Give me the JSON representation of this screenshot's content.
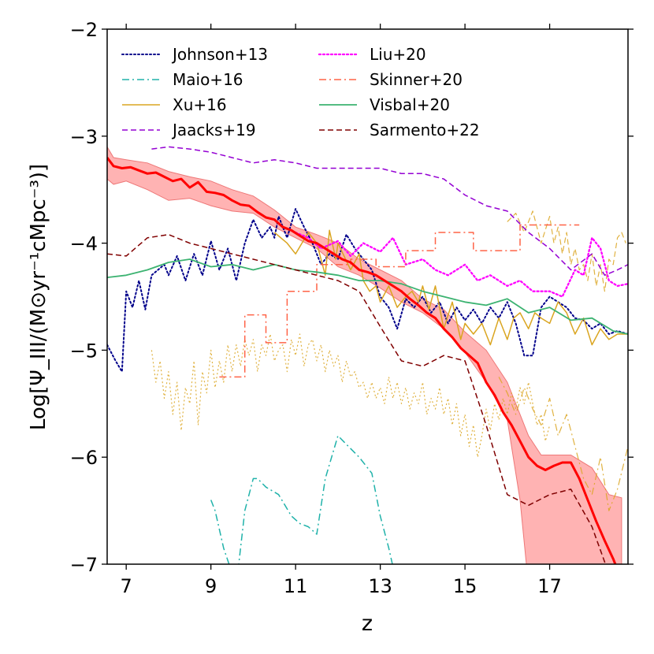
{
  "chart_data": {
    "type": "line",
    "title": "",
    "xlabel": "z",
    "ylabel": "Log[Ψ_III/(M⊙yr⁻¹cMpc⁻³)]",
    "xlim": [
      6.55,
      18.85
    ],
    "ylim": [
      -7,
      -2
    ],
    "xticks": [
      7,
      9,
      11,
      13,
      15,
      17
    ],
    "yticks": [
      -7,
      -6,
      -5,
      -4,
      -3,
      -2
    ],
    "legend_position": "top",
    "series": [
      {
        "name": "Johnson+13",
        "style": "dotted",
        "color": "#00008b",
        "width": 2,
        "x": [
          6.55,
          6.75,
          6.9,
          7.0,
          7.15,
          7.3,
          7.45,
          7.6,
          7.75,
          7.9,
          8.0,
          8.2,
          8.4,
          8.6,
          8.8,
          9.0,
          9.2,
          9.4,
          9.6,
          9.8,
          10.0,
          10.2,
          10.4,
          10.5,
          10.6,
          10.8,
          11.0,
          11.2,
          11.4,
          11.6,
          11.8,
          12.0,
          12.2,
          12.4,
          12.6,
          12.8,
          13.0,
          13.2,
          13.4,
          13.6,
          13.8,
          14.0,
          14.2,
          14.4,
          14.6,
          14.8,
          15.0,
          15.2,
          15.4,
          15.6,
          15.8,
          16.0,
          16.2,
          16.4,
          16.6,
          16.8,
          17.0,
          17.2,
          17.4,
          17.6,
          17.8,
          18.0,
          18.2,
          18.4,
          18.6,
          18.85
        ],
        "y": [
          -4.95,
          -5.1,
          -5.2,
          -4.45,
          -4.6,
          -4.35,
          -4.62,
          -4.3,
          -4.25,
          -4.2,
          -4.3,
          -4.12,
          -4.35,
          -4.1,
          -4.3,
          -3.98,
          -4.25,
          -4.05,
          -4.35,
          -4.0,
          -3.78,
          -3.95,
          -3.85,
          -3.95,
          -3.75,
          -3.95,
          -3.68,
          -3.85,
          -4.0,
          -4.2,
          -4.1,
          -4.15,
          -3.92,
          -4.05,
          -4.15,
          -4.25,
          -4.5,
          -4.6,
          -4.8,
          -4.52,
          -4.6,
          -4.5,
          -4.65,
          -4.55,
          -4.75,
          -4.6,
          -4.72,
          -4.62,
          -4.75,
          -4.6,
          -4.7,
          -4.55,
          -4.75,
          -5.05,
          -5.05,
          -4.6,
          -4.5,
          -4.55,
          -4.6,
          -4.7,
          -4.72,
          -4.8,
          -4.75,
          -4.85,
          -4.82,
          -4.85
        ]
      },
      {
        "name": "Maio+16",
        "style": "dashdot",
        "color": "#20b2aa",
        "width": 1.5,
        "x": [
          9.0,
          9.1,
          9.3,
          9.6,
          9.8,
          10.0,
          10.1,
          10.3,
          10.6,
          10.9,
          11.1,
          11.3,
          11.5,
          11.7,
          12.0,
          12.2,
          12.5,
          12.8,
          13.0,
          13.2,
          13.4
        ],
        "y": [
          -6.4,
          -6.5,
          -6.85,
          -7.2,
          -6.5,
          -6.2,
          -6.2,
          -6.28,
          -6.35,
          -6.55,
          -6.62,
          -6.65,
          -6.72,
          -6.2,
          -5.8,
          -5.88,
          -6.0,
          -6.15,
          -6.55,
          -6.85,
          -7.2
        ]
      },
      {
        "name": "Xu+16",
        "style": "solid",
        "color": "#daa520",
        "width": 1.5,
        "x": [
          10.5,
          10.8,
          11.0,
          11.3,
          11.5,
          11.7,
          11.8,
          11.95,
          12.0,
          12.3,
          12.5,
          12.6,
          12.75,
          12.9,
          13.0,
          13.2,
          13.4,
          13.6,
          13.75,
          13.9,
          14.0,
          14.15,
          14.3,
          14.5,
          14.7,
          14.9,
          15.0,
          15.2,
          15.4,
          15.6,
          15.8,
          16.0,
          16.15,
          16.3,
          16.5,
          16.65,
          16.8,
          17.0,
          17.2,
          17.4,
          17.6,
          17.8,
          18.0,
          18.2,
          18.4,
          18.6,
          18.85
        ],
        "y": [
          -3.9,
          -4.0,
          -4.1,
          -3.9,
          -4.0,
          -4.3,
          -3.88,
          -4.15,
          -4.0,
          -4.25,
          -4.1,
          -4.35,
          -4.45,
          -4.4,
          -4.55,
          -4.4,
          -4.6,
          -4.5,
          -4.45,
          -4.55,
          -4.4,
          -4.62,
          -4.4,
          -4.8,
          -4.55,
          -4.9,
          -4.75,
          -4.85,
          -4.75,
          -4.95,
          -4.7,
          -4.9,
          -4.7,
          -4.65,
          -4.8,
          -4.65,
          -4.7,
          -4.75,
          -4.55,
          -4.65,
          -4.85,
          -4.7,
          -4.95,
          -4.8,
          -4.9,
          -4.85,
          -4.85
        ]
      },
      {
        "name": "Jaacks+19",
        "style": "dashed",
        "color": "#9400d3",
        "width": 1.5,
        "x": [
          7.6,
          8.0,
          8.5,
          9.0,
          9.5,
          10.0,
          10.5,
          11.0,
          11.5,
          12.0,
          12.5,
          13.0,
          13.5,
          14.0,
          14.5,
          15.0,
          15.5,
          16.0,
          16.5,
          17.0,
          17.5,
          18.0,
          18.3,
          18.6,
          18.85
        ],
        "y": [
          -3.12,
          -3.1,
          -3.12,
          -3.15,
          -3.2,
          -3.25,
          -3.22,
          -3.25,
          -3.3,
          -3.3,
          -3.3,
          -3.3,
          -3.35,
          -3.35,
          -3.4,
          -3.55,
          -3.65,
          -3.7,
          -3.9,
          -4.05,
          -4.25,
          -4.1,
          -4.3,
          -4.25,
          -4.2
        ]
      },
      {
        "name": "Liu+20",
        "style": "dotted",
        "color": "#ff00ff",
        "width": 2.3,
        "x": [
          11.0,
          11.3,
          11.6,
          12.0,
          12.3,
          12.6,
          13.0,
          13.3,
          13.6,
          14.0,
          14.3,
          14.6,
          15.0,
          15.3,
          15.6,
          16.0,
          16.3,
          16.6,
          17.0,
          17.3,
          17.6,
          17.8,
          18.0,
          18.2,
          18.4,
          18.6,
          18.85
        ],
        "y": [
          -3.9,
          -3.95,
          -4.05,
          -3.98,
          -4.12,
          -4.0,
          -4.08,
          -3.95,
          -4.2,
          -4.15,
          -4.25,
          -4.3,
          -4.2,
          -4.35,
          -4.3,
          -4.4,
          -4.35,
          -4.45,
          -4.45,
          -4.5,
          -4.25,
          -4.3,
          -3.95,
          -4.05,
          -4.35,
          -4.4,
          -4.38
        ]
      },
      {
        "name": "Skinner+20",
        "style": "dashdot",
        "color": "#ff6347",
        "width": 1.5,
        "x": [
          9.2,
          9.2,
          9.8,
          9.8,
          10.3,
          10.3,
          10.8,
          10.8,
          11.5,
          11.5,
          12.3,
          12.3,
          12.9,
          12.9,
          13.6,
          13.6,
          14.3,
          14.3,
          15.2,
          15.2,
          16.3,
          16.3,
          17.7
        ],
        "y": [
          -5.25,
          -5.25,
          -5.25,
          -4.67,
          -4.67,
          -4.93,
          -4.93,
          -4.45,
          -4.45,
          -4.2,
          -4.2,
          -4.15,
          -4.15,
          -4.22,
          -4.22,
          -4.07,
          -4.07,
          -3.9,
          -3.9,
          -4.07,
          -4.07,
          -3.83,
          -3.83
        ]
      },
      {
        "name": "Visbal+20",
        "style": "solid",
        "color": "#3cb371",
        "width": 1.8,
        "x": [
          6.55,
          7.0,
          7.5,
          8.0,
          8.5,
          9.0,
          9.5,
          10.0,
          10.5,
          11.0,
          11.5,
          12.0,
          12.5,
          13.0,
          13.5,
          14.0,
          14.5,
          15.0,
          15.5,
          16.0,
          16.5,
          17.0,
          17.5,
          18.0,
          18.5,
          18.85
        ],
        "y": [
          -4.32,
          -4.3,
          -4.25,
          -4.18,
          -4.15,
          -4.22,
          -4.2,
          -4.25,
          -4.2,
          -4.25,
          -4.27,
          -4.3,
          -4.35,
          -4.35,
          -4.38,
          -4.45,
          -4.5,
          -4.55,
          -4.58,
          -4.52,
          -4.65,
          -4.6,
          -4.72,
          -4.7,
          -4.82,
          -4.85
        ]
      },
      {
        "name": "Sarmento+22",
        "style": "dashed",
        "color": "#800000",
        "width": 1.5,
        "x": [
          6.55,
          7.0,
          7.5,
          8.0,
          8.5,
          9.0,
          9.5,
          10.0,
          10.5,
          11.0,
          11.5,
          12.0,
          12.5,
          13.0,
          13.5,
          14.0,
          14.5,
          15.0,
          15.5,
          16.0,
          16.5,
          17.0,
          17.5,
          18.0,
          18.5
        ],
        "y": [
          -4.1,
          -4.12,
          -3.95,
          -3.92,
          -4.0,
          -4.05,
          -4.1,
          -4.15,
          -4.2,
          -4.25,
          -4.3,
          -4.35,
          -4.45,
          -4.78,
          -5.1,
          -5.15,
          -5.05,
          -5.1,
          -5.7,
          -6.35,
          -6.45,
          -6.35,
          -6.3,
          -6.65,
          -7.2
        ]
      },
      {
        "name": "Mean",
        "style": "solid",
        "color": "#ff0000",
        "width": 3,
        "legend": false,
        "x": [
          6.55,
          6.7,
          6.9,
          7.1,
          7.3,
          7.5,
          7.7,
          7.9,
          8.1,
          8.3,
          8.5,
          8.7,
          8.9,
          9.1,
          9.3,
          9.5,
          9.7,
          9.9,
          10.1,
          10.3,
          10.5,
          10.7,
          10.9,
          11.1,
          11.3,
          11.5,
          11.7,
          11.9,
          12.1,
          12.3,
          12.5,
          12.7,
          12.9,
          13.1,
          13.3,
          13.5,
          13.7,
          13.9,
          14.1,
          14.3,
          14.5,
          14.7,
          14.9,
          15.1,
          15.3,
          15.5,
          15.7,
          15.9,
          16.1,
          16.3,
          16.5,
          16.7,
          16.9,
          17.1,
          17.3,
          17.5,
          17.7,
          17.9,
          18.1,
          18.3,
          18.5,
          18.7
        ],
        "y": [
          -3.2,
          -3.28,
          -3.3,
          -3.29,
          -3.32,
          -3.35,
          -3.34,
          -3.38,
          -3.42,
          -3.4,
          -3.48,
          -3.43,
          -3.52,
          -3.53,
          -3.55,
          -3.6,
          -3.64,
          -3.65,
          -3.71,
          -3.76,
          -3.78,
          -3.85,
          -3.88,
          -3.93,
          -3.98,
          -4.0,
          -4.05,
          -4.1,
          -4.15,
          -4.18,
          -4.25,
          -4.27,
          -4.3,
          -4.35,
          -4.4,
          -4.45,
          -4.52,
          -4.58,
          -4.65,
          -4.7,
          -4.8,
          -4.88,
          -4.98,
          -5.05,
          -5.12,
          -5.3,
          -5.42,
          -5.58,
          -5.7,
          -5.85,
          -6.0,
          -6.08,
          -6.12,
          -6.08,
          -6.05,
          -6.05,
          -6.2,
          -6.4,
          -6.6,
          -6.78,
          -6.95,
          -7.15
        ]
      }
    ],
    "band": {
      "name": "Mean scatter",
      "color": "#ff9999",
      "edge": "#ee7777",
      "x": [
        6.55,
        6.7,
        7.0,
        7.5,
        8.0,
        8.5,
        9.0,
        9.5,
        10.0,
        10.5,
        11.0,
        11.5,
        12.0,
        12.5,
        13.0,
        13.5,
        14.0,
        14.5,
        15.0,
        15.5,
        16.0,
        16.3,
        16.5,
        16.8,
        17.5,
        18.0,
        18.4,
        18.7
      ],
      "upper": [
        -3.1,
        -3.2,
        -3.22,
        -3.25,
        -3.33,
        -3.38,
        -3.42,
        -3.5,
        -3.56,
        -3.69,
        -3.85,
        -3.92,
        -4.0,
        -4.15,
        -4.25,
        -4.35,
        -4.52,
        -4.62,
        -4.83,
        -5.0,
        -5.3,
        -5.6,
        -5.8,
        -5.98,
        -5.98,
        -6.1,
        -6.35,
        -6.38
      ],
      "lower": [
        -3.4,
        -3.45,
        -3.42,
        -3.5,
        -3.6,
        -3.58,
        -3.65,
        -3.7,
        -3.72,
        -3.85,
        -3.95,
        -4.05,
        -4.22,
        -4.3,
        -4.42,
        -4.55,
        -4.65,
        -4.8,
        -5.02,
        -5.3,
        -5.65,
        -6.4,
        -7.2,
        -7.2,
        -7.2,
        -7.2,
        -7.2,
        -7.2
      ]
    },
    "faint_series": [
      {
        "name": "Xu+16 scatter",
        "style": "dotted",
        "color": "#daa520",
        "width": 1.2,
        "x": [
          7.6,
          7.7,
          7.8,
          7.9,
          8.0,
          8.1,
          8.2,
          8.3,
          8.4,
          8.5,
          8.6,
          8.7,
          8.8,
          8.9,
          9.0,
          9.1,
          9.2,
          9.3,
          9.4,
          9.5,
          9.6,
          9.7,
          9.8,
          9.9,
          10.0,
          10.1,
          10.2,
          10.3,
          10.4,
          10.5,
          10.6,
          10.7,
          10.8,
          10.9,
          11.0,
          11.1,
          11.2,
          11.3,
          11.4,
          11.5,
          11.6,
          11.7,
          11.8,
          11.9,
          12.0,
          12.1,
          12.2,
          12.3,
          12.4,
          12.5,
          12.6,
          12.7,
          12.8,
          12.9,
          13.0,
          13.1,
          13.2,
          13.3,
          13.4,
          13.5,
          13.6,
          13.7,
          13.8,
          13.9,
          14.0,
          14.1,
          14.2,
          14.3,
          14.4,
          14.5,
          14.6,
          14.7,
          14.8,
          14.9,
          15.0,
          15.1,
          15.2,
          15.3,
          15.4,
          15.5,
          15.6,
          15.7,
          15.8,
          15.9,
          16.0,
          16.1,
          16.2,
          16.3,
          16.4,
          16.5,
          16.6,
          16.7,
          16.8,
          16.9,
          17.0
        ],
        "y": [
          -5.0,
          -5.3,
          -5.1,
          -5.45,
          -5.2,
          -5.6,
          -5.3,
          -5.75,
          -5.35,
          -5.5,
          -5.1,
          -5.7,
          -5.2,
          -5.4,
          -5.0,
          -5.35,
          -5.1,
          -5.3,
          -4.95,
          -5.2,
          -4.95,
          -5.15,
          -4.9,
          -5.05,
          -4.9,
          -5.2,
          -4.95,
          -5.05,
          -4.85,
          -5.1,
          -5.0,
          -4.95,
          -5.2,
          -4.9,
          -5.05,
          -4.85,
          -5.15,
          -4.95,
          -4.9,
          -5.1,
          -4.95,
          -5.2,
          -5.0,
          -5.15,
          -5.05,
          -5.3,
          -5.1,
          -5.25,
          -5.2,
          -5.35,
          -5.3,
          -5.45,
          -5.3,
          -5.45,
          -5.35,
          -5.5,
          -5.25,
          -5.45,
          -5.3,
          -5.5,
          -5.35,
          -5.55,
          -5.4,
          -5.5,
          -5.3,
          -5.6,
          -5.45,
          -5.55,
          -5.35,
          -5.6,
          -5.45,
          -5.7,
          -5.5,
          -5.8,
          -5.6,
          -5.9,
          -5.7,
          -6.0,
          -5.8,
          -5.55,
          -5.75,
          -5.5,
          -5.65,
          -5.45,
          -5.6,
          -5.4,
          -5.55,
          -5.35,
          -5.5,
          -5.3,
          -5.5,
          -5.7,
          -5.6,
          -5.85,
          -5.7
        ]
      },
      {
        "name": "Xu+16 high-z",
        "style": "dashed",
        "color": "#daa520",
        "width": 1.2,
        "x": [
          16.0,
          16.2,
          16.4,
          16.6,
          16.8,
          17.0,
          17.1,
          17.2,
          17.3,
          17.4,
          17.5,
          17.6,
          17.7,
          17.8,
          17.9,
          18.0,
          18.1,
          18.2,
          18.3,
          18.4,
          18.5,
          18.6,
          18.7,
          18.8
        ],
        "y": [
          -3.8,
          -3.72,
          -3.9,
          -3.7,
          -4.0,
          -3.75,
          -4.0,
          -3.85,
          -4.1,
          -3.9,
          -4.2,
          -4.05,
          -4.25,
          -4.2,
          -4.35,
          -4.1,
          -4.4,
          -4.2,
          -4.45,
          -4.15,
          -4.2,
          -3.95,
          -3.9,
          -4.0
        ]
      },
      {
        "name": "Xu+16 low tail",
        "style": "dashdot",
        "color": "#daa520",
        "width": 1.2,
        "x": [
          15.8,
          16.0,
          16.2,
          16.4,
          16.6,
          16.8,
          17.0,
          17.2,
          17.4,
          17.6,
          17.8,
          18.0,
          18.2,
          18.4,
          18.6,
          18.85
        ],
        "y": [
          -5.25,
          -5.4,
          -5.6,
          -5.35,
          -5.55,
          -5.7,
          -5.45,
          -5.8,
          -5.6,
          -5.9,
          -6.2,
          -6.35,
          -6.0,
          -6.5,
          -6.3,
          -5.9
        ]
      }
    ]
  }
}
